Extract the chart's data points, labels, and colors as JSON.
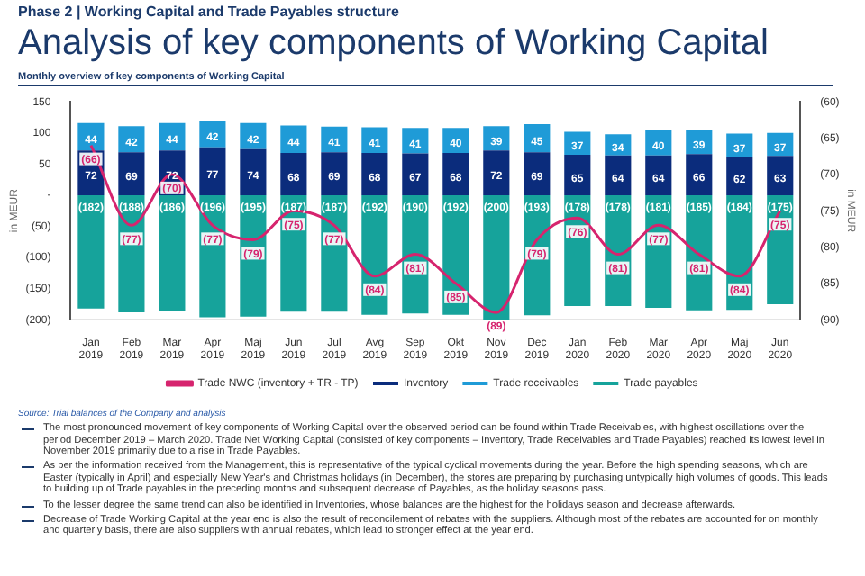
{
  "chart_data": {
    "type": "bar",
    "stacked": true,
    "title": "Analysis of key components of Working Capital",
    "subtitle": "Monthly overview of key components of Working Capital",
    "ylabel": "in MEUR",
    "y2label": "in MEUR",
    "categories": [
      "Jan 2019",
      "Feb 2019",
      "Mar 2019",
      "Apr 2019",
      "Maj 2019",
      "Jun 2019",
      "Jul 2019",
      "Avg 2019",
      "Sep 2019",
      "Okt 2019",
      "Nov 2019",
      "Dec 2019",
      "Jan 2020",
      "Feb 2020",
      "Mar 2020",
      "Apr 2020",
      "Maj 2020",
      "Jun 2020"
    ],
    "series": [
      {
        "name": "Inventory",
        "color": "#0b2c7c",
        "values": [
          72,
          69,
          72,
          77,
          74,
          68,
          69,
          68,
          67,
          68,
          72,
          69,
          65,
          64,
          64,
          66,
          62,
          63
        ],
        "value_labels": [
          "72",
          "69",
          "72",
          "77",
          "74",
          "68",
          "69",
          "68",
          "67",
          "68",
          "72",
          "69",
          "65",
          "64",
          "64",
          "66",
          "62",
          "63"
        ]
      },
      {
        "name": "Trade receivables",
        "color": "#1f9bd7",
        "values": [
          44,
          42,
          44,
          42,
          42,
          44,
          41,
          41,
          41,
          40,
          39,
          45,
          37,
          34,
          40,
          39,
          37,
          37
        ],
        "value_labels": [
          "44",
          "42",
          "44",
          "42",
          "42",
          "44",
          "41",
          "41",
          "41",
          "40",
          "39",
          "45",
          "37",
          "34",
          "40",
          "39",
          "37",
          "37"
        ]
      },
      {
        "name": "Trade payables",
        "color": "#16a39b",
        "values": [
          -182,
          -188,
          -186,
          -196,
          -195,
          -187,
          -187,
          -192,
          -190,
          -192,
          -200,
          -193,
          -178,
          -178,
          -181,
          -185,
          -184,
          -175
        ],
        "value_labels": [
          "(182)",
          "(188)",
          "(186)",
          "(196)",
          "(195)",
          "(187)",
          "(187)",
          "(192)",
          "(190)",
          "(192)",
          "(200)",
          "(193)",
          "(178)",
          "(178)",
          "(181)",
          "(185)",
          "(184)",
          "(175)"
        ]
      },
      {
        "name": "Trade NWC (inventory + TR - TP)",
        "type": "line",
        "axis": "y2",
        "color": "#d6246e",
        "values": [
          -66,
          -77,
          -70,
          -77,
          -79,
          -75,
          -77,
          -84,
          -81,
          -85,
          -89,
          -79,
          -76,
          -81,
          -77,
          -81,
          -84,
          -75
        ],
        "value_labels": [
          "(66)",
          "(77)",
          "(70)",
          "(77)",
          "(79)",
          "(75)",
          "(77)",
          "(84)",
          "(81)",
          "(85)",
          "(89)",
          "(79)",
          "(76)",
          "(81)",
          "(77)",
          "(81)",
          "(84)",
          "(75)"
        ]
      }
    ],
    "ylim": [
      -200,
      150
    ],
    "yticks": [
      {
        "value": -200,
        "label": "(200)"
      },
      {
        "value": -150,
        "label": "(150)"
      },
      {
        "value": -100,
        "label": "(100)"
      },
      {
        "value": -50,
        "label": "(50)"
      },
      {
        "value": 0,
        "label": "-"
      },
      50,
      100,
      150
    ],
    "y2lim": [
      -90,
      -60
    ],
    "y2ticks": [
      {
        "value": -90,
        "label": "(90)"
      },
      {
        "value": -85,
        "label": "(85)"
      },
      {
        "value": -80,
        "label": "(80)"
      },
      {
        "value": -75,
        "label": "(75)"
      },
      {
        "value": -70,
        "label": "(70)"
      },
      {
        "value": -65,
        "label": "(65)"
      },
      {
        "value": -60,
        "label": "(60)"
      }
    ],
    "grid": false,
    "legend": "bottom",
    "marker": "none",
    "line_style": "solid",
    "annotations": [
      "Phase 2 | Working Capital and Trade Payables structure",
      "Source: Trial balances of the Company and analysis",
      "The most pronounced movement of key components of Working Capital over the observed period can be found within Trade Receivables, with highest oscillations over the period December 2019 – March 2020. Trade Net Working Capital (consisted of key components – Inventory, Trade Receivables and Trade Payables) reached its lowest level in November 2019 primarily due to a rise in Trade Payables.",
      "As per the information received from the Management, this is representative of the typical cyclical movements during the year. Before the high spending seasons, which are Easter (typically in April) and especially New Year's and Christmas holidays (in December), the stores are preparing by purchasing untypically high volumes of goods. This leads to building up of Trade payables in the preceding months and subsequent decrease of Payables, as the holiday seasons pass.",
      "To the lesser degree the same trend can also be identified in Inventories, whose balances are the highest for the holidays season and decrease afterwards.",
      "Decrease of Trade Working Capital at the year end is also the result of reconcilement of rebates with the suppliers. Although most of the rebates are accounted for on monthly and quarterly basis, there are also suppliers with annual rebates, which lead to stronger effect at the year end."
    ]
  }
}
